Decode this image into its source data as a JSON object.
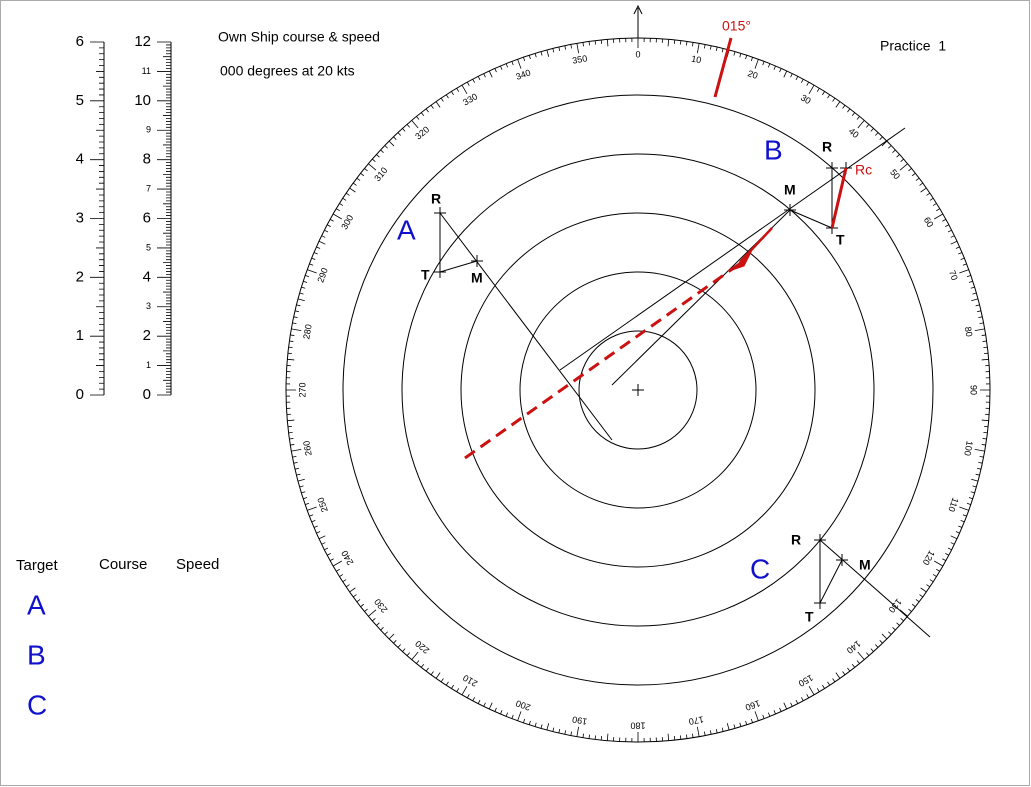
{
  "header": {
    "own_ship": "Own Ship course & speed",
    "own_ship_value": "000 degrees at 20 kts",
    "practice": "Practice  1"
  },
  "scales": {
    "left": [
      0,
      1,
      2,
      3,
      4,
      5,
      6
    ],
    "right": [
      0,
      1,
      2,
      3,
      4,
      5,
      6,
      7,
      8,
      9,
      10,
      11,
      12
    ]
  },
  "compass": {
    "labels": [
      0,
      10,
      20,
      30,
      40,
      50,
      60,
      70,
      80,
      90,
      100,
      110,
      120,
      130,
      140,
      150,
      160,
      170,
      180,
      190,
      200,
      210,
      220,
      230,
      240,
      250,
      260,
      270,
      280,
      290,
      300,
      310,
      320,
      330,
      340,
      350
    ]
  },
  "annotations": {
    "course": "015°",
    "rc": "Rc"
  },
  "targets": [
    {
      "name": "A",
      "r": "R",
      "t": "T",
      "m": "M"
    },
    {
      "name": "B",
      "r": "R",
      "t": "T",
      "m": "M"
    },
    {
      "name": "C",
      "r": "R",
      "t": "T",
      "m": "M"
    }
  ],
  "table": {
    "headers": [
      "Target",
      "Course",
      "Speed"
    ],
    "rows": [
      "A",
      "B",
      "C"
    ]
  }
}
